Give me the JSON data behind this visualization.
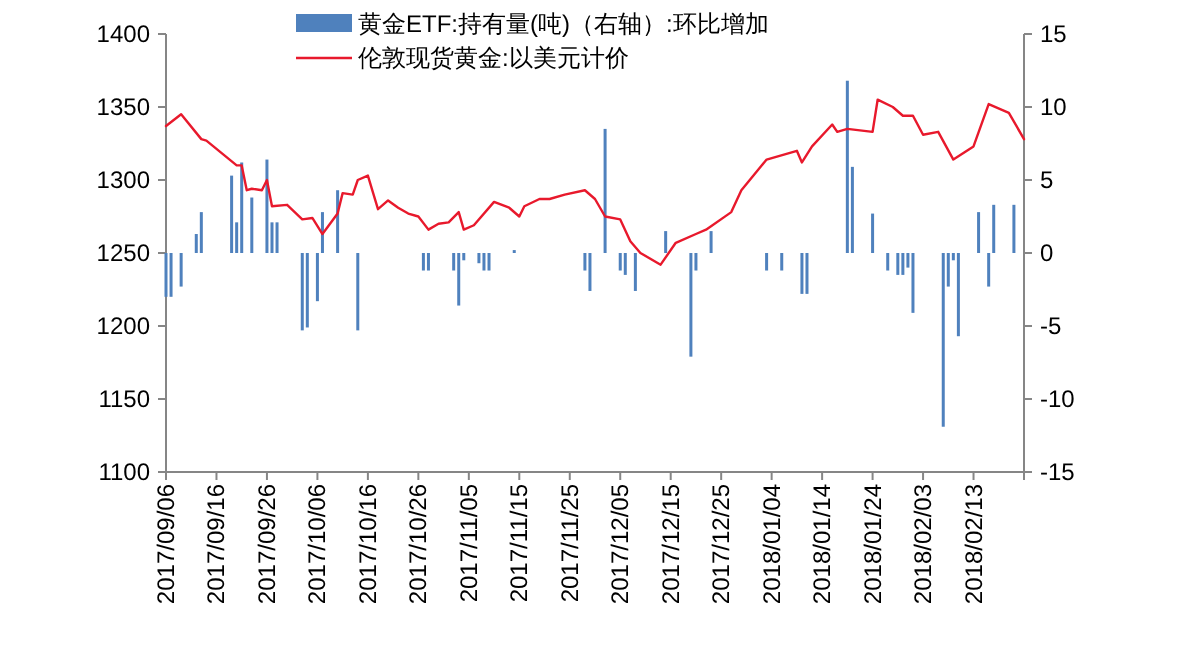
{
  "chart_data": {
    "type": "bar",
    "legend": "top",
    "xlim": [
      "2017-09-06",
      "2018-02-23"
    ],
    "xticks": [
      {
        "value": "2017-09-06",
        "label": "2017/09/06"
      },
      {
        "value": "2017-09-16",
        "label": "2017/09/16"
      },
      {
        "value": "2017-09-26",
        "label": "2017/09/26"
      },
      {
        "value": "2017-10-06",
        "label": "2017/10/06"
      },
      {
        "value": "2017-10-16",
        "label": "2017/10/16"
      },
      {
        "value": "2017-10-26",
        "label": "2017/10/26"
      },
      {
        "value": "2017-11-05",
        "label": "2017/11/05"
      },
      {
        "value": "2017-11-15",
        "label": "2017/11/15"
      },
      {
        "value": "2017-11-25",
        "label": "2017/11/25"
      },
      {
        "value": "2017-12-05",
        "label": "2017/12/05"
      },
      {
        "value": "2017-12-15",
        "label": "2017/12/15"
      },
      {
        "value": "2017-12-25",
        "label": "2017/12/25"
      },
      {
        "value": "2018-01-04",
        "label": "2018/01/04"
      },
      {
        "value": "2018-01-14",
        "label": "2018/01/14"
      },
      {
        "value": "2018-01-24",
        "label": "2018/01/24"
      },
      {
        "value": "2018-02-03",
        "label": "2018/02/03"
      },
      {
        "value": "2018-02-13",
        "label": "2018/02/13"
      },
      {
        "value": "2018-02-23",
        "label": null
      }
    ],
    "ylim": [
      1100,
      1400
    ],
    "yticks": [
      1100,
      1150,
      1200,
      1250,
      1300,
      1350,
      1400
    ],
    "y2lim": [
      -15,
      15
    ],
    "y2ticks": [
      -15,
      -10,
      -5,
      0,
      5,
      10,
      15
    ],
    "series": [
      {
        "axis": "y2",
        "name": "黄金ETF:持有量(吨)（右轴）:环比增加",
        "color": "#4f81bd",
        "x": [
          "2017-09-06",
          "2017-09-07",
          "2017-09-09",
          "2017-09-12",
          "2017-09-13",
          "2017-09-19",
          "2017-09-20",
          "2017-09-21",
          "2017-09-23",
          "2017-09-26",
          "2017-09-27",
          "2017-09-28",
          "2017-10-03",
          "2017-10-04",
          "2017-10-06",
          "2017-10-07",
          "2017-10-10",
          "2017-10-14",
          "2017-10-27",
          "2017-10-28",
          "2017-11-02",
          "2017-11-03",
          "2017-11-04",
          "2017-11-07",
          "2017-11-08",
          "2017-11-09",
          "2017-11-14",
          "2017-11-28",
          "2017-11-29",
          "2017-12-02",
          "2017-12-05",
          "2017-12-06",
          "2017-12-08",
          "2017-12-14",
          "2017-12-19",
          "2017-12-20",
          "2017-12-23",
          "2018-01-03",
          "2018-01-06",
          "2018-01-10",
          "2018-01-11",
          "2018-01-19",
          "2018-01-20",
          "2018-01-24",
          "2018-01-27",
          "2018-01-29",
          "2018-01-30",
          "2018-01-31",
          "2018-02-01",
          "2018-02-07",
          "2018-02-08",
          "2018-02-09",
          "2018-02-10",
          "2018-02-14",
          "2018-02-16",
          "2018-02-17",
          "2018-02-21"
        ],
        "values": [
          -3.0,
          -3.0,
          -2.3,
          1.3,
          2.8,
          5.3,
          2.1,
          6.2,
          3.8,
          6.4,
          2.1,
          2.1,
          -5.3,
          -5.1,
          -3.3,
          2.8,
          4.3,
          -5.3,
          -1.2,
          -1.2,
          -1.2,
          -3.6,
          -0.5,
          -0.7,
          -1.2,
          -1.2,
          0.2,
          -1.2,
          -2.6,
          8.5,
          -1.2,
          -1.5,
          -2.6,
          1.5,
          -7.1,
          -1.2,
          1.5,
          -1.2,
          -1.2,
          -2.8,
          -2.8,
          11.8,
          5.9,
          2.7,
          -1.2,
          -1.5,
          -1.5,
          -1.0,
          -4.1,
          -11.9,
          -2.3,
          -0.5,
          -5.7,
          2.8,
          -2.3,
          3.3,
          3.3
        ]
      },
      {
        "type": "line",
        "name": "伦敦现货黄金:以美元计价",
        "color": "#e8192c",
        "x": [
          "2017-09-06",
          "2017-09-09",
          "2017-09-13",
          "2017-09-14",
          "2017-09-20",
          "2017-09-21",
          "2017-09-22",
          "2017-09-23",
          "2017-09-25",
          "2017-09-26",
          "2017-09-27",
          "2017-09-30",
          "2017-10-03",
          "2017-10-05",
          "2017-10-07",
          "2017-10-10",
          "2017-10-11",
          "2017-10-13",
          "2017-10-14",
          "2017-10-16",
          "2017-10-18",
          "2017-10-20",
          "2017-10-22",
          "2017-10-24",
          "2017-10-26",
          "2017-10-28",
          "2017-10-30",
          "2017-11-01",
          "2017-11-03",
          "2017-11-04",
          "2017-11-06",
          "2017-11-10",
          "2017-11-13",
          "2017-11-15",
          "2017-11-16",
          "2017-11-19",
          "2017-11-21",
          "2017-11-24",
          "2017-11-28",
          "2017-11-30",
          "2017-12-02",
          "2017-12-05",
          "2017-12-07",
          "2017-12-09",
          "2017-12-13",
          "2017-12-16",
          "2017-12-20",
          "2017-12-22",
          "2017-12-27",
          "2017-12-29",
          "2018-01-03",
          "2018-01-09",
          "2018-01-10",
          "2018-01-12",
          "2018-01-16",
          "2018-01-17",
          "2018-01-19",
          "2018-01-24",
          "2018-01-25",
          "2018-01-28",
          "2018-01-30",
          "2018-02-01",
          "2018-02-03",
          "2018-02-06",
          "2018-02-09",
          "2018-02-13",
          "2018-02-16",
          "2018-02-20",
          "2018-02-23"
        ],
        "values": [
          1337,
          1345,
          1328,
          1327,
          1310,
          1310,
          1293,
          1294,
          1293,
          1300,
          1282,
          1283,
          1273,
          1274,
          1263,
          1277,
          1291,
          1290,
          1300,
          1303,
          1280,
          1286,
          1281,
          1277,
          1275,
          1266,
          1270,
          1271,
          1278,
          1266,
          1269,
          1285,
          1281,
          1275,
          1282,
          1287,
          1287,
          1290,
          1293,
          1287,
          1275,
          1273,
          1258,
          1250,
          1242,
          1257,
          1263,
          1266,
          1278,
          1293,
          1314,
          1320,
          1312,
          1323,
          1338,
          1333,
          1335,
          1333,
          1355,
          1350,
          1344,
          1344,
          1331,
          1333,
          1314,
          1323,
          1352,
          1346,
          1328
        ]
      }
    ]
  }
}
